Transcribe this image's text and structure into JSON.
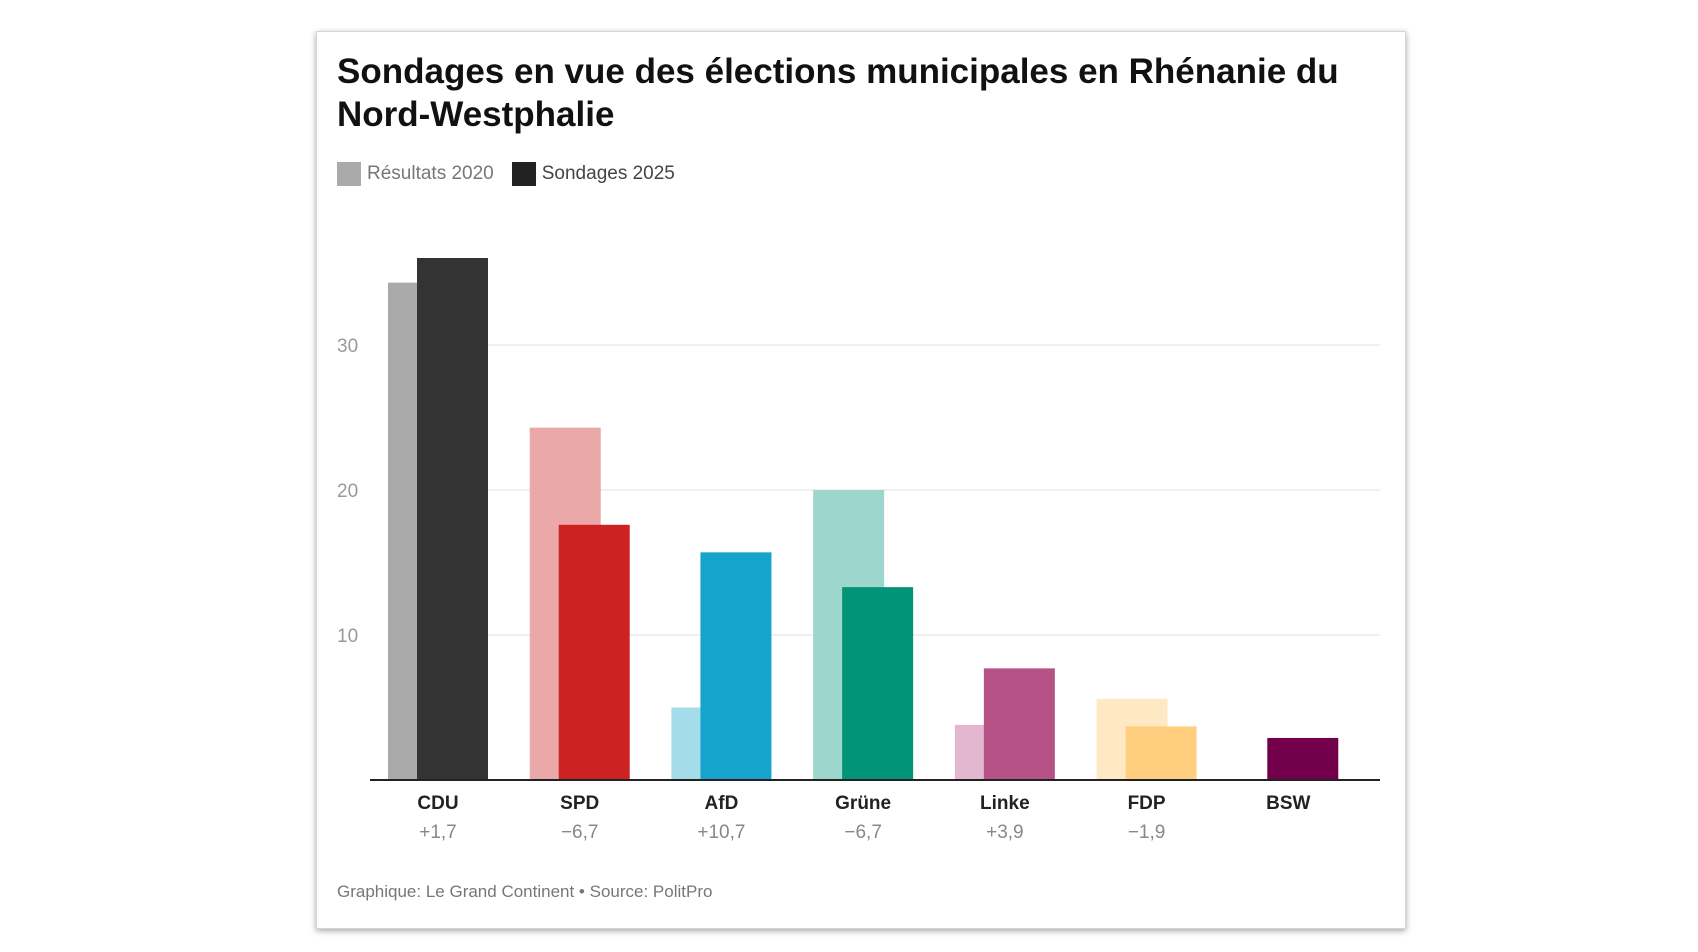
{
  "header": {
    "title": "Sondages en vue des élections municipales en Rhénanie du Nord-Westphalie"
  },
  "legend": {
    "items": [
      {
        "label": "Résultats 2020",
        "color": "#aaaaaa"
      },
      {
        "label": "Sondages 2025",
        "color": "#222222"
      }
    ]
  },
  "footer": {
    "source": "Graphique: Le Grand Continent • Source: PolitPro"
  },
  "chart_data": {
    "type": "bar",
    "title": "Sondages en vue des élections municipales en Rhénanie du Nord-Westphalie",
    "xlabel": "",
    "ylabel": "",
    "ylim": [
      0,
      37
    ],
    "yticks": [
      10,
      20,
      30
    ],
    "grid": true,
    "legend_position": "top-left",
    "categories": [
      "CDU",
      "SPD",
      "AfD",
      "Grüne",
      "Linke",
      "FDP",
      "BSW"
    ],
    "changes": [
      "+1,7",
      "−6,7",
      "+10,7",
      "−6,7",
      "+3,9",
      "−1,9",
      ""
    ],
    "series": [
      {
        "name": "Résultats 2020",
        "values": [
          34.3,
          24.3,
          5.0,
          20.0,
          3.8,
          5.6,
          null
        ]
      },
      {
        "name": "Sondages 2025",
        "values": [
          36.0,
          17.6,
          15.7,
          13.3,
          7.7,
          3.7,
          2.9
        ]
      }
    ],
    "colors_2020": [
      "#aaaaaa",
      "#eba8a8",
      "#a4dcea",
      "#9dd6cc",
      "#e3b7d0",
      "#ffe8c4",
      "#d9a6bf"
    ],
    "colors_2025": [
      "#333333",
      "#cc2222",
      "#16a3cc",
      "#009478",
      "#b65286",
      "#ffcf7f",
      "#73004a"
    ]
  }
}
